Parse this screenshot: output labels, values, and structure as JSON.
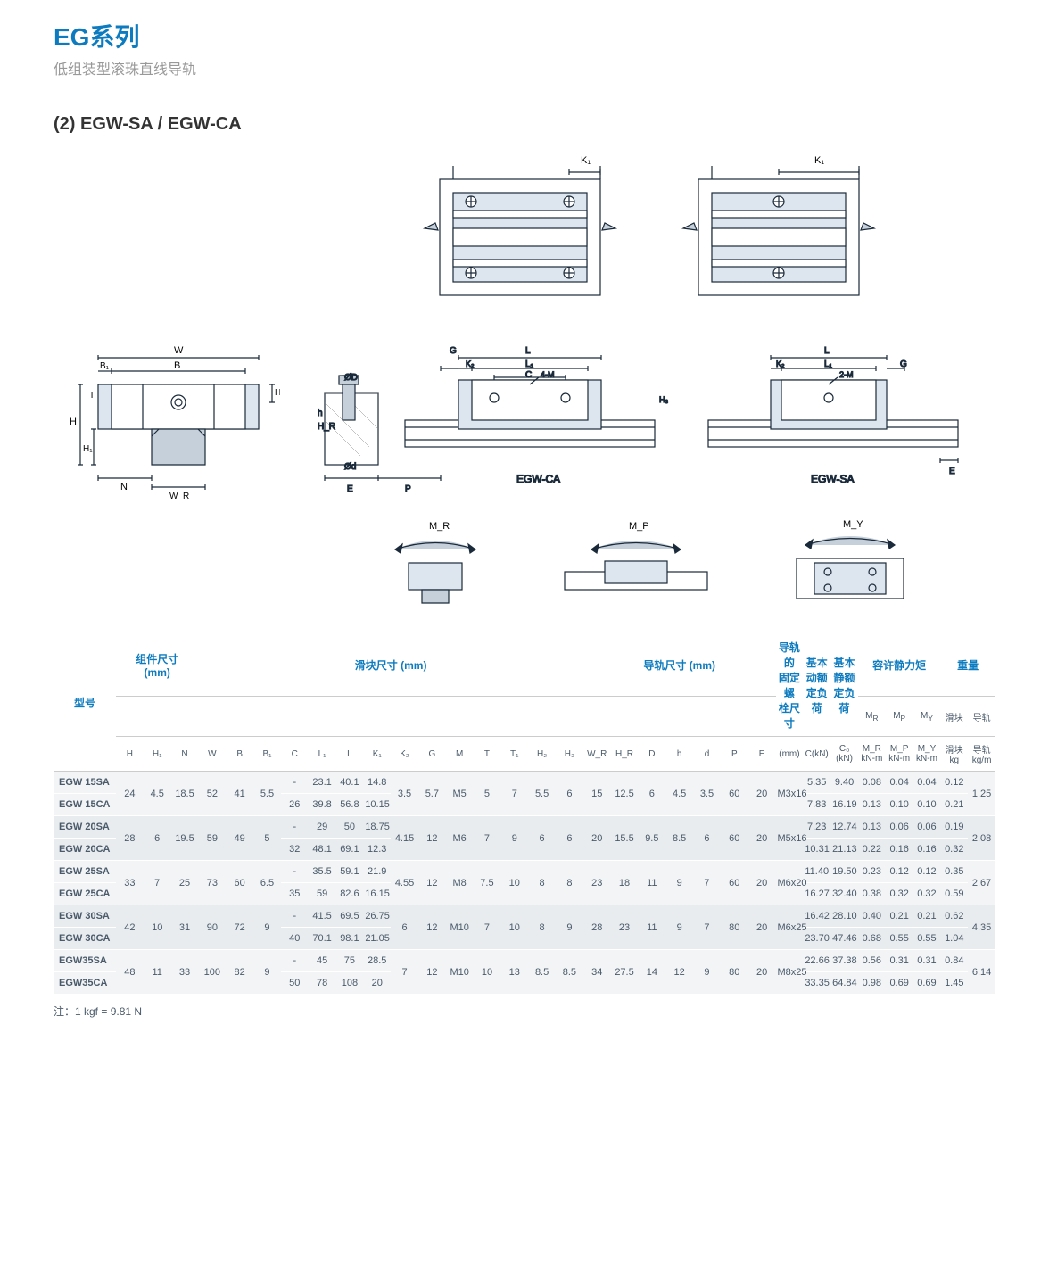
{
  "header": {
    "title": "EG系列",
    "subtitle": "低组装型滚珠直线导轨"
  },
  "section": "(2) EGW-SA / EGW-CA",
  "diagram": {
    "labels": {
      "K1": "K₁",
      "W": "W",
      "B": "B",
      "B1": "B₁",
      "T": "T",
      "H": "H",
      "H1": "H₁",
      "H2": "H₂",
      "N": "N",
      "WR": "W_R",
      "G": "G",
      "L": "L",
      "L1": "L₁",
      "K2": "K₂",
      "C": "C",
      "M4": "4-M",
      "M2": "2-M",
      "H3": "H₃",
      "HR": "H_R",
      "h": "h",
      "OD": "ØD",
      "Od": "Ød",
      "E": "E",
      "P": "P",
      "CA": "EGW-CA",
      "SA": "EGW-SA",
      "MR": "M_R",
      "MP": "M_P",
      "MY": "M_Y"
    },
    "stroke": "#1a2a3a",
    "fill": "#dde6ee",
    "accent": "#c5d0da"
  },
  "table": {
    "groupHeaders": {
      "model": "型号",
      "assembly": "组件尺寸\n(mm)",
      "block": "滑块尺寸 (mm)",
      "rail": "导轨尺寸 (mm)",
      "bolt": "导轨的\n固定螺\n栓尺寸",
      "dyn": "基本\n动额\n定负荷",
      "stat": "基本\n静额\n定负荷",
      "moment": "容许静力矩",
      "weight": "重量"
    },
    "subHeaders": [
      "H",
      "H₁",
      "N",
      "W",
      "B",
      "B₁",
      "C",
      "L₁",
      "L",
      "K₁",
      "K₂",
      "G",
      "M",
      "T",
      "T₁",
      "H₂",
      "H₃",
      "W_R",
      "H_R",
      "D",
      "h",
      "d",
      "P",
      "E",
      "(mm)",
      "C(kN)",
      "C₀ (kN)",
      "M_R\nkN-m",
      "M_P\nkN-m",
      "M_Y\nkN-m",
      "滑块\nkg",
      "导轨\nkg/m"
    ],
    "rows": [
      {
        "m": "EGW 15SA",
        "H": "24",
        "H1": "4.5",
        "N": "18.5",
        "W": "52",
        "B": "41",
        "B1": "5.5",
        "C": "-",
        "L1": "23.1",
        "L": "40.1",
        "K1": "14.8",
        "K2": "3.5",
        "G": "5.7",
        "Mt": "M5",
        "T": "5",
        "T1": "7",
        "H2": "5.5",
        "H3": "6",
        "WR": "15",
        "HR": "12.5",
        "D": "6",
        "h": "4.5",
        "d": "3.5",
        "P": "60",
        "E": "20",
        "bolt": "M3x16",
        "Ck": "5.35",
        "C0": "9.40",
        "MR": "0.08",
        "MP": "0.04",
        "MY": "0.04",
        "wb": "0.12",
        "wr": "1.25"
      },
      {
        "m": "EGW 15CA",
        "C": "26",
        "L1": "39.8",
        "L": "56.8",
        "K1": "10.15",
        "Ck": "7.83",
        "C0": "16.19",
        "MR": "0.13",
        "MP": "0.10",
        "MY": "0.10",
        "wb": "0.21"
      },
      {
        "m": "EGW 20SA",
        "H": "28",
        "H1": "6",
        "N": "19.5",
        "W": "59",
        "B": "49",
        "B1": "5",
        "C": "-",
        "L1": "29",
        "L": "50",
        "K1": "18.75",
        "K2": "4.15",
        "G": "12",
        "Mt": "M6",
        "T": "7",
        "T1": "9",
        "H2": "6",
        "H3": "6",
        "WR": "20",
        "HR": "15.5",
        "D": "9.5",
        "h": "8.5",
        "d": "6",
        "P": "60",
        "E": "20",
        "bolt": "M5x16",
        "Ck": "7.23",
        "C0": "12.74",
        "MR": "0.13",
        "MP": "0.06",
        "MY": "0.06",
        "wb": "0.19",
        "wr": "2.08"
      },
      {
        "m": "EGW 20CA",
        "C": "32",
        "L1": "48.1",
        "L": "69.1",
        "K1": "12.3",
        "Ck": "10.31",
        "C0": "21.13",
        "MR": "0.22",
        "MP": "0.16",
        "MY": "0.16",
        "wb": "0.32"
      },
      {
        "m": "EGW 25SA",
        "H": "33",
        "H1": "7",
        "N": "25",
        "W": "73",
        "B": "60",
        "B1": "6.5",
        "C": "-",
        "L1": "35.5",
        "L": "59.1",
        "K1": "21.9",
        "K2": "4.55",
        "G": "12",
        "Mt": "M8",
        "T": "7.5",
        "T1": "10",
        "H2": "8",
        "H3": "8",
        "WR": "23",
        "HR": "18",
        "D": "11",
        "h": "9",
        "d": "7",
        "P": "60",
        "E": "20",
        "bolt": "M6x20",
        "Ck": "11.40",
        "C0": "19.50",
        "MR": "0.23",
        "MP": "0.12",
        "MY": "0.12",
        "wb": "0.35",
        "wr": "2.67"
      },
      {
        "m": "EGW 25CA",
        "C": "35",
        "L1": "59",
        "L": "82.6",
        "K1": "16.15",
        "Ck": "16.27",
        "C0": "32.40",
        "MR": "0.38",
        "MP": "0.32",
        "MY": "0.32",
        "wb": "0.59"
      },
      {
        "m": "EGW 30SA",
        "H": "42",
        "H1": "10",
        "N": "31",
        "W": "90",
        "B": "72",
        "B1": "9",
        "C": "-",
        "L1": "41.5",
        "L": "69.5",
        "K1": "26.75",
        "K2": "6",
        "G": "12",
        "Mt": "M10",
        "T": "7",
        "T1": "10",
        "H2": "8",
        "H3": "9",
        "WR": "28",
        "HR": "23",
        "D": "11",
        "h": "9",
        "d": "7",
        "P": "80",
        "E": "20",
        "bolt": "M6x25",
        "Ck": "16.42",
        "C0": "28.10",
        "MR": "0.40",
        "MP": "0.21",
        "MY": "0.21",
        "wb": "0.62",
        "wr": "4.35"
      },
      {
        "m": "EGW 30CA",
        "C": "40",
        "L1": "70.1",
        "L": "98.1",
        "K1": "21.05",
        "Ck": "23.70",
        "C0": "47.46",
        "MR": "0.68",
        "MP": "0.55",
        "MY": "0.55",
        "wb": "1.04"
      },
      {
        "m": "EGW35SA",
        "H": "48",
        "H1": "11",
        "N": "33",
        "W": "100",
        "B": "82",
        "B1": "9",
        "C": "-",
        "L1": "45",
        "L": "75",
        "K1": "28.5",
        "K2": "7",
        "G": "12",
        "Mt": "M10",
        "T": "10",
        "T1": "13",
        "H2": "8.5",
        "H3": "8.5",
        "WR": "34",
        "HR": "27.5",
        "D": "14",
        "h": "12",
        "d": "9",
        "P": "80",
        "E": "20",
        "bolt": "M8x25",
        "Ck": "22.66",
        "C0": "37.38",
        "MR": "0.56",
        "MP": "0.31",
        "MY": "0.31",
        "wb": "0.84",
        "wr": "6.14"
      },
      {
        "m": "EGW35CA",
        "C": "50",
        "L1": "78",
        "L": "108",
        "K1": "20",
        "Ck": "33.35",
        "C0": "64.84",
        "MR": "0.98",
        "MP": "0.69",
        "MY": "0.69",
        "wb": "1.45"
      }
    ]
  },
  "footnote": "注：1 kgf = 9.81 N"
}
